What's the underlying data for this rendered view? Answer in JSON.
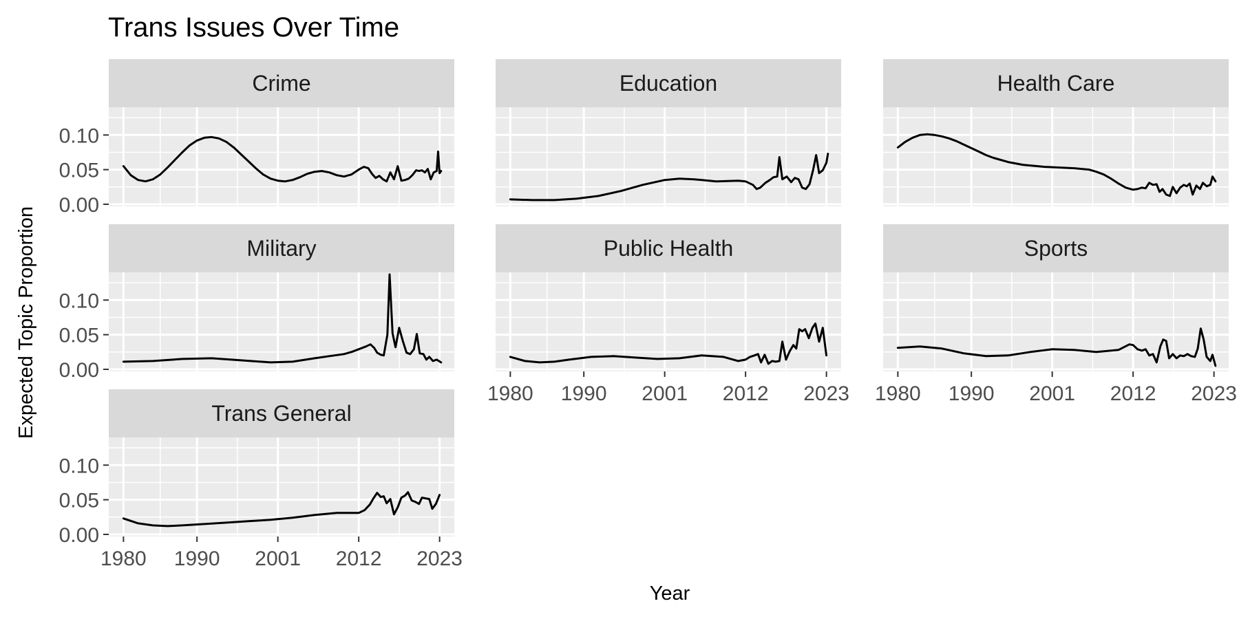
{
  "chart_data": {
    "type": "line",
    "title": "Trans Issues Over Time",
    "xlabel": "Year",
    "ylabel": "Expected Topic Proportion",
    "xlim": [
      1978,
      2025
    ],
    "ylim": [
      -0.003,
      0.14
    ],
    "x_ticks": [
      1980,
      1990,
      2001,
      2012,
      2023
    ],
    "x_tick_labels": [
      "1980",
      "1990",
      "2001",
      "2012",
      "2023"
    ],
    "y_ticks": [
      0.0,
      0.05,
      0.1
    ],
    "y_tick_labels": [
      "0.00",
      "0.05",
      "0.10"
    ],
    "grid": true,
    "background": "#EBEBEB",
    "strip_color": "#D9D9D9",
    "line_color": "#000000",
    "series": [
      {
        "name": "Crime",
        "points": [
          [
            1980,
            0.055
          ],
          [
            1981,
            0.042
          ],
          [
            1982,
            0.035
          ],
          [
            1983,
            0.033
          ],
          [
            1984,
            0.036
          ],
          [
            1985,
            0.043
          ],
          [
            1986,
            0.053
          ],
          [
            1987,
            0.064
          ],
          [
            1988,
            0.075
          ],
          [
            1989,
            0.085
          ],
          [
            1990,
            0.092
          ],
          [
            1991,
            0.096
          ],
          [
            1992,
            0.097
          ],
          [
            1993,
            0.095
          ],
          [
            1994,
            0.09
          ],
          [
            1995,
            0.082
          ],
          [
            1996,
            0.072
          ],
          [
            1997,
            0.062
          ],
          [
            1998,
            0.052
          ],
          [
            1999,
            0.043
          ],
          [
            2000,
            0.037
          ],
          [
            2001,
            0.034
          ],
          [
            2002,
            0.033
          ],
          [
            2003,
            0.035
          ],
          [
            2004,
            0.039
          ],
          [
            2005,
            0.044
          ],
          [
            2006,
            0.047
          ],
          [
            2007,
            0.048
          ],
          [
            2008,
            0.046
          ],
          [
            2009,
            0.042
          ],
          [
            2010,
            0.04
          ],
          [
            2011,
            0.043
          ],
          [
            2012,
            0.05
          ],
          [
            2012.7,
            0.054
          ],
          [
            2013.3,
            0.052
          ],
          [
            2013.8,
            0.044
          ],
          [
            2014.3,
            0.038
          ],
          [
            2014.8,
            0.041
          ],
          [
            2015.3,
            0.036
          ],
          [
            2015.8,
            0.033
          ],
          [
            2016.3,
            0.046
          ],
          [
            2016.8,
            0.036
          ],
          [
            2017.3,
            0.055
          ],
          [
            2017.8,
            0.034
          ],
          [
            2018.3,
            0.035
          ],
          [
            2018.8,
            0.037
          ],
          [
            2019.3,
            0.042
          ],
          [
            2019.8,
            0.049
          ],
          [
            2020.2,
            0.048
          ],
          [
            2020.6,
            0.049
          ],
          [
            2021,
            0.046
          ],
          [
            2021.4,
            0.051
          ],
          [
            2021.8,
            0.036
          ],
          [
            2022.2,
            0.046
          ],
          [
            2022.6,
            0.048
          ],
          [
            2022.8,
            0.076
          ],
          [
            2023,
            0.045
          ],
          [
            2023.2,
            0.048
          ]
        ]
      },
      {
        "name": "Education",
        "points": [
          [
            1980,
            0.007
          ],
          [
            1983,
            0.006
          ],
          [
            1986,
            0.006
          ],
          [
            1989,
            0.008
          ],
          [
            1992,
            0.012
          ],
          [
            1995,
            0.019
          ],
          [
            1998,
            0.028
          ],
          [
            2001,
            0.035
          ],
          [
            2003,
            0.037
          ],
          [
            2005,
            0.036
          ],
          [
            2008,
            0.033
          ],
          [
            2011,
            0.034
          ],
          [
            2012,
            0.033
          ],
          [
            2013,
            0.028
          ],
          [
            2013.5,
            0.022
          ],
          [
            2014,
            0.024
          ],
          [
            2014.7,
            0.031
          ],
          [
            2015.3,
            0.035
          ],
          [
            2015.8,
            0.039
          ],
          [
            2016.3,
            0.04
          ],
          [
            2016.6,
            0.068
          ],
          [
            2017,
            0.036
          ],
          [
            2017.6,
            0.04
          ],
          [
            2018.2,
            0.032
          ],
          [
            2018.7,
            0.038
          ],
          [
            2019.2,
            0.036
          ],
          [
            2019.7,
            0.024
          ],
          [
            2020.2,
            0.022
          ],
          [
            2020.7,
            0.029
          ],
          [
            2021.2,
            0.05
          ],
          [
            2021.6,
            0.071
          ],
          [
            2022,
            0.045
          ],
          [
            2022.5,
            0.049
          ],
          [
            2023,
            0.06
          ],
          [
            2023.2,
            0.073
          ]
        ]
      },
      {
        "name": "Health Care",
        "points": [
          [
            1980,
            0.082
          ],
          [
            1981,
            0.09
          ],
          [
            1982,
            0.096
          ],
          [
            1983,
            0.1
          ],
          [
            1984,
            0.101
          ],
          [
            1985,
            0.1
          ],
          [
            1986,
            0.098
          ],
          [
            1987,
            0.095
          ],
          [
            1988,
            0.091
          ],
          [
            1989,
            0.086
          ],
          [
            1990,
            0.081
          ],
          [
            1991,
            0.076
          ],
          [
            1992,
            0.071
          ],
          [
            1993,
            0.067
          ],
          [
            1994,
            0.064
          ],
          [
            1995,
            0.061
          ],
          [
            1996,
            0.059
          ],
          [
            1997,
            0.057
          ],
          [
            1998,
            0.056
          ],
          [
            1999,
            0.055
          ],
          [
            2000,
            0.054
          ],
          [
            2002,
            0.053
          ],
          [
            2004,
            0.052
          ],
          [
            2006,
            0.05
          ],
          [
            2007,
            0.047
          ],
          [
            2008,
            0.043
          ],
          [
            2009,
            0.037
          ],
          [
            2010,
            0.03
          ],
          [
            2011,
            0.024
          ],
          [
            2012,
            0.021
          ],
          [
            2012.6,
            0.022
          ],
          [
            2013.2,
            0.024
          ],
          [
            2013.7,
            0.023
          ],
          [
            2014.2,
            0.031
          ],
          [
            2014.7,
            0.028
          ],
          [
            2015.2,
            0.029
          ],
          [
            2015.6,
            0.018
          ],
          [
            2016,
            0.022
          ],
          [
            2016.5,
            0.014
          ],
          [
            2017,
            0.012
          ],
          [
            2017.4,
            0.025
          ],
          [
            2017.9,
            0.016
          ],
          [
            2018.4,
            0.024
          ],
          [
            2018.9,
            0.028
          ],
          [
            2019.3,
            0.026
          ],
          [
            2019.7,
            0.03
          ],
          [
            2020.1,
            0.014
          ],
          [
            2020.6,
            0.027
          ],
          [
            2021.1,
            0.022
          ],
          [
            2021.5,
            0.031
          ],
          [
            2022,
            0.026
          ],
          [
            2022.5,
            0.028
          ],
          [
            2022.8,
            0.04
          ],
          [
            2023.2,
            0.033
          ]
        ]
      },
      {
        "name": "Military",
        "points": [
          [
            1980,
            0.011
          ],
          [
            1984,
            0.012
          ],
          [
            1988,
            0.015
          ],
          [
            1992,
            0.016
          ],
          [
            1996,
            0.013
          ],
          [
            2000,
            0.01
          ],
          [
            2003,
            0.011
          ],
          [
            2006,
            0.016
          ],
          [
            2008,
            0.019
          ],
          [
            2010,
            0.022
          ],
          [
            2011,
            0.025
          ],
          [
            2012,
            0.029
          ],
          [
            2013,
            0.033
          ],
          [
            2013.6,
            0.036
          ],
          [
            2014.1,
            0.031
          ],
          [
            2014.5,
            0.024
          ],
          [
            2015,
            0.021
          ],
          [
            2015.4,
            0.02
          ],
          [
            2015.9,
            0.05
          ],
          [
            2016.2,
            0.137
          ],
          [
            2016.6,
            0.052
          ],
          [
            2017,
            0.032
          ],
          [
            2017.5,
            0.06
          ],
          [
            2018,
            0.041
          ],
          [
            2018.5,
            0.024
          ],
          [
            2019,
            0.022
          ],
          [
            2019.5,
            0.029
          ],
          [
            2019.9,
            0.051
          ],
          [
            2020.3,
            0.023
          ],
          [
            2020.8,
            0.022
          ],
          [
            2021.2,
            0.014
          ],
          [
            2021.6,
            0.018
          ],
          [
            2022.1,
            0.012
          ],
          [
            2022.6,
            0.014
          ],
          [
            2023.2,
            0.01
          ]
        ]
      },
      {
        "name": "Public Health",
        "points": [
          [
            1980,
            0.018
          ],
          [
            1982,
            0.012
          ],
          [
            1984,
            0.01
          ],
          [
            1986,
            0.011
          ],
          [
            1988,
            0.014
          ],
          [
            1991,
            0.018
          ],
          [
            1994,
            0.019
          ],
          [
            1997,
            0.017
          ],
          [
            2000,
            0.015
          ],
          [
            2003,
            0.016
          ],
          [
            2006,
            0.02
          ],
          [
            2009,
            0.018
          ],
          [
            2011,
            0.012
          ],
          [
            2012,
            0.014
          ],
          [
            2012.6,
            0.018
          ],
          [
            2013.2,
            0.02
          ],
          [
            2013.7,
            0.022
          ],
          [
            2014.1,
            0.01
          ],
          [
            2014.6,
            0.021
          ],
          [
            2015.1,
            0.008
          ],
          [
            2015.6,
            0.012
          ],
          [
            2016.1,
            0.011
          ],
          [
            2016.6,
            0.012
          ],
          [
            2017,
            0.04
          ],
          [
            2017.5,
            0.014
          ],
          [
            2018,
            0.026
          ],
          [
            2018.5,
            0.035
          ],
          [
            2018.9,
            0.03
          ],
          [
            2019.3,
            0.058
          ],
          [
            2019.7,
            0.055
          ],
          [
            2020.1,
            0.058
          ],
          [
            2020.6,
            0.045
          ],
          [
            2021.1,
            0.06
          ],
          [
            2021.5,
            0.066
          ],
          [
            2022,
            0.04
          ],
          [
            2022.5,
            0.06
          ],
          [
            2023,
            0.02
          ]
        ]
      },
      {
        "name": "Sports",
        "points": [
          [
            1980,
            0.031
          ],
          [
            1983,
            0.033
          ],
          [
            1986,
            0.03
          ],
          [
            1989,
            0.023
          ],
          [
            1992,
            0.019
          ],
          [
            1995,
            0.02
          ],
          [
            1998,
            0.025
          ],
          [
            2001,
            0.029
          ],
          [
            2004,
            0.028
          ],
          [
            2007,
            0.025
          ],
          [
            2010,
            0.028
          ],
          [
            2011.5,
            0.036
          ],
          [
            2012,
            0.035
          ],
          [
            2012.6,
            0.029
          ],
          [
            2013.2,
            0.027
          ],
          [
            2013.7,
            0.029
          ],
          [
            2014.2,
            0.02
          ],
          [
            2014.7,
            0.022
          ],
          [
            2015.2,
            0.01
          ],
          [
            2015.7,
            0.033
          ],
          [
            2016.1,
            0.043
          ],
          [
            2016.5,
            0.041
          ],
          [
            2016.9,
            0.016
          ],
          [
            2017.4,
            0.022
          ],
          [
            2017.9,
            0.016
          ],
          [
            2018.4,
            0.02
          ],
          [
            2018.9,
            0.019
          ],
          [
            2019.4,
            0.022
          ],
          [
            2019.9,
            0.019
          ],
          [
            2020.4,
            0.018
          ],
          [
            2020.8,
            0.03
          ],
          [
            2021.2,
            0.059
          ],
          [
            2021.6,
            0.043
          ],
          [
            2022,
            0.018
          ],
          [
            2022.5,
            0.012
          ],
          [
            2022.8,
            0.021
          ],
          [
            2023.2,
            0.005
          ]
        ]
      },
      {
        "name": "Trans General",
        "points": [
          [
            1980,
            0.023
          ],
          [
            1982,
            0.016
          ],
          [
            1984,
            0.013
          ],
          [
            1986,
            0.012
          ],
          [
            1988,
            0.013
          ],
          [
            1991,
            0.015
          ],
          [
            1994,
            0.017
          ],
          [
            1997,
            0.019
          ],
          [
            2000,
            0.021
          ],
          [
            2003,
            0.024
          ],
          [
            2006,
            0.028
          ],
          [
            2009,
            0.031
          ],
          [
            2011,
            0.031
          ],
          [
            2012,
            0.031
          ],
          [
            2012.8,
            0.035
          ],
          [
            2013.5,
            0.043
          ],
          [
            2014,
            0.052
          ],
          [
            2014.5,
            0.06
          ],
          [
            2015,
            0.054
          ],
          [
            2015.4,
            0.055
          ],
          [
            2015.8,
            0.045
          ],
          [
            2016.3,
            0.051
          ],
          [
            2016.8,
            0.029
          ],
          [
            2017.3,
            0.039
          ],
          [
            2017.8,
            0.053
          ],
          [
            2018.3,
            0.056
          ],
          [
            2018.7,
            0.061
          ],
          [
            2019.2,
            0.049
          ],
          [
            2019.7,
            0.047
          ],
          [
            2020.2,
            0.044
          ],
          [
            2020.6,
            0.053
          ],
          [
            2021.1,
            0.052
          ],
          [
            2021.6,
            0.051
          ],
          [
            2022,
            0.037
          ],
          [
            2022.5,
            0.044
          ],
          [
            2023,
            0.057
          ]
        ]
      }
    ]
  }
}
